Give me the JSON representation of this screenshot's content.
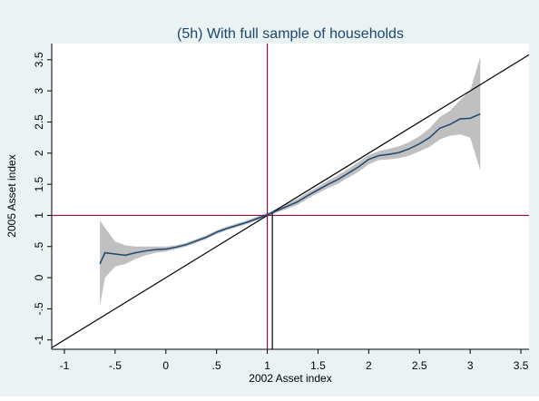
{
  "chart_data": {
    "type": "line",
    "title": "(5h) With full sample of households",
    "x_label": "2002 Asset index",
    "y_label": "2005 Asset index",
    "x": [
      -0.65,
      -0.6,
      -0.5,
      -0.4,
      -0.3,
      -0.2,
      -0.1,
      0,
      0.1,
      0.2,
      0.3,
      0.4,
      0.5,
      0.6,
      0.7,
      0.8,
      0.9,
      1.0,
      1.1,
      1.2,
      1.3,
      1.4,
      1.5,
      1.6,
      1.7,
      1.8,
      1.9,
      2.0,
      2.1,
      2.2,
      2.3,
      2.4,
      2.5,
      2.6,
      2.7,
      2.8,
      2.9,
      3.0,
      3.1
    ],
    "values": [
      0.22,
      0.4,
      0.38,
      0.36,
      0.4,
      0.43,
      0.45,
      0.46,
      0.49,
      0.53,
      0.59,
      0.65,
      0.73,
      0.79,
      0.84,
      0.89,
      0.95,
      1.01,
      1.08,
      1.15,
      1.22,
      1.32,
      1.41,
      1.5,
      1.58,
      1.68,
      1.78,
      1.9,
      1.96,
      1.98,
      2.01,
      2.07,
      2.15,
      2.25,
      2.4,
      2.46,
      2.55,
      2.56,
      2.63
    ],
    "ci_high": [
      0.92,
      0.8,
      0.58,
      0.52,
      0.5,
      0.5,
      0.5,
      0.5,
      0.52,
      0.56,
      0.62,
      0.68,
      0.76,
      0.82,
      0.87,
      0.92,
      0.98,
      1.04,
      1.11,
      1.19,
      1.27,
      1.37,
      1.46,
      1.56,
      1.65,
      1.75,
      1.86,
      1.97,
      2.03,
      2.07,
      2.11,
      2.18,
      2.27,
      2.4,
      2.58,
      2.68,
      2.85,
      3.0,
      3.55
    ],
    "ci_low": [
      -0.45,
      0.0,
      0.18,
      0.22,
      0.3,
      0.36,
      0.4,
      0.42,
      0.46,
      0.5,
      0.56,
      0.62,
      0.7,
      0.76,
      0.81,
      0.86,
      0.92,
      0.98,
      1.05,
      1.11,
      1.17,
      1.27,
      1.36,
      1.44,
      1.51,
      1.61,
      1.7,
      1.82,
      1.89,
      1.9,
      1.92,
      1.96,
      2.03,
      2.1,
      2.22,
      2.28,
      2.3,
      2.25,
      1.72
    ],
    "color": "#1a476f",
    "ci_color": "#c0c0c0",
    "hline": 1,
    "vline": 1,
    "ref_color": "#90103a",
    "drop_x": 1.05,
    "drop_y": 1.05,
    "diagonal": true,
    "xlim": [
      -1.125,
      3.58
    ],
    "ylim": [
      -1.15,
      3.76
    ],
    "xticks": [
      -1,
      {
        "value": -0.5,
        "label": "-.5"
      },
      0,
      {
        "value": 0.5,
        "label": ".5"
      },
      1,
      1.5,
      2,
      2.5,
      3,
      3.5
    ],
    "yticks": [
      -1,
      {
        "value": -0.5,
        "label": "-.5"
      },
      0,
      {
        "value": 0.5,
        "label": ".5"
      },
      1,
      1.5,
      2,
      2.5,
      3,
      3.5
    ]
  }
}
